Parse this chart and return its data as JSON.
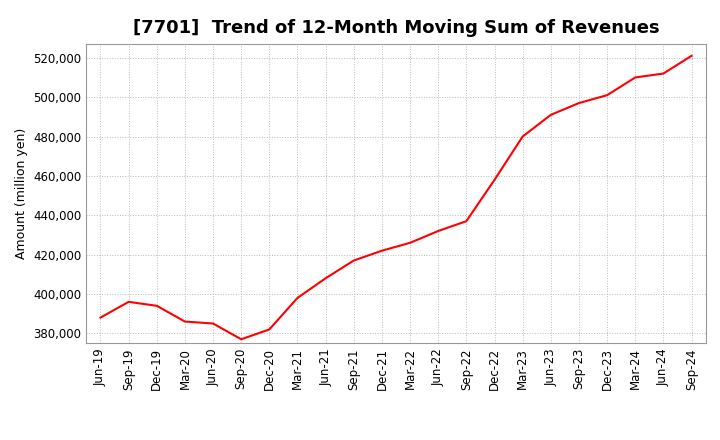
{
  "title": "[7701]  Trend of 12-Month Moving Sum of Revenues",
  "ylabel": "Amount (million yen)",
  "line_color": "#FF0000",
  "line_width": 1.5,
  "background_color": "#FFFFFF",
  "plot_background_color": "#FFFFFF",
  "ylim": [
    375000,
    527000
  ],
  "yticks": [
    380000,
    400000,
    420000,
    440000,
    460000,
    480000,
    500000,
    520000
  ],
  "x_labels": [
    "Jun-19",
    "Sep-19",
    "Dec-19",
    "Mar-20",
    "Jun-20",
    "Sep-20",
    "Dec-20",
    "Mar-21",
    "Jun-21",
    "Sep-21",
    "Dec-21",
    "Mar-22",
    "Jun-22",
    "Sep-22",
    "Dec-22",
    "Mar-23",
    "Jun-23",
    "Sep-23",
    "Dec-23",
    "Mar-24",
    "Jun-24",
    "Sep-24"
  ],
  "values": [
    388000,
    396000,
    394000,
    386000,
    385000,
    377000,
    382000,
    398000,
    408000,
    417000,
    422000,
    426000,
    432000,
    437000,
    458000,
    480000,
    491000,
    497000,
    501000,
    510000,
    512000,
    521000
  ],
  "title_fontsize": 13,
  "ylabel_fontsize": 9,
  "tick_fontsize": 8.5
}
